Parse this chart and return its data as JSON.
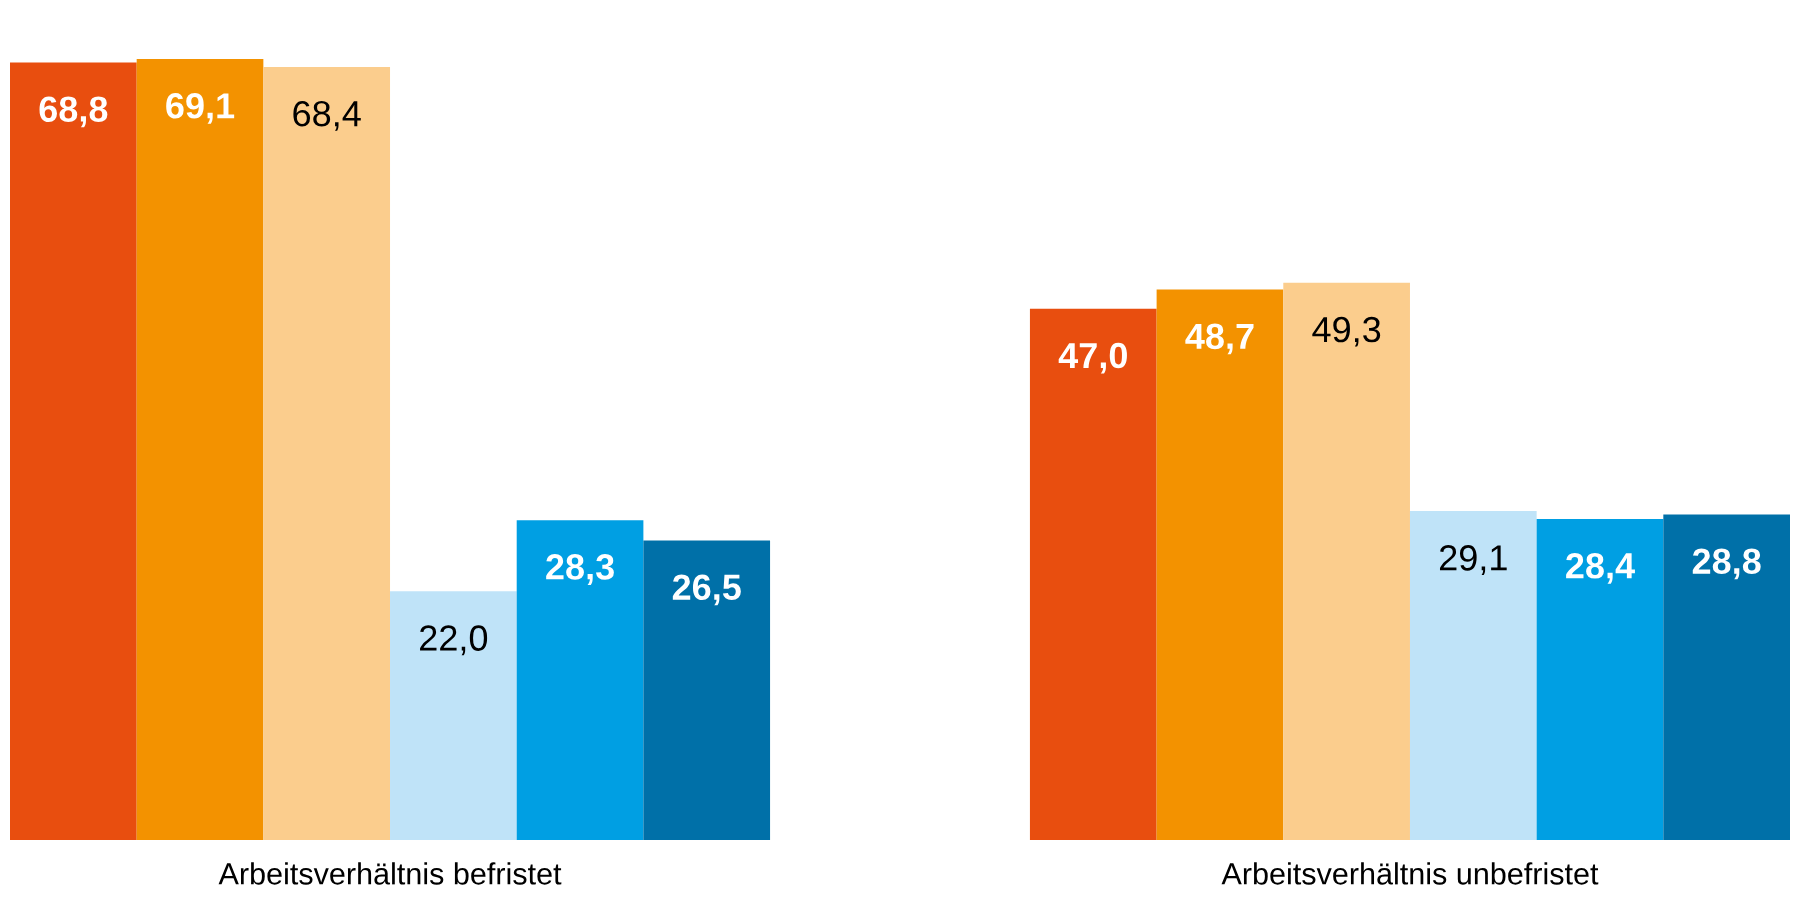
{
  "chart_data": {
    "type": "bar",
    "categories": [
      "Arbeitsverhältnis befristet",
      "Arbeitsverhältnis unbefristet"
    ],
    "grid": false,
    "tick_labels": "x",
    "series": [
      {
        "color": "#e84e0f",
        "values": [
          68.8,
          47.0
        ],
        "value_labels": [
          "68,8",
          "47,0"
        ]
      },
      {
        "color": "#f39200",
        "values": [
          69.1,
          48.7
        ],
        "value_labels": [
          "69,1",
          "48,7"
        ]
      },
      {
        "color": "#fbcd8d",
        "values": [
          68.4,
          49.3
        ],
        "value_labels": [
          "68,4",
          "49,3"
        ]
      },
      {
        "color": "#bfe3f8",
        "values": [
          22.0,
          29.1
        ],
        "value_labels": [
          "22,0",
          "29,1"
        ]
      },
      {
        "color": "#009fe3",
        "values": [
          28.3,
          28.4
        ],
        "value_labels": [
          "28,3",
          "28,4"
        ]
      },
      {
        "color": "#0070a8",
        "values": [
          26.5,
          28.8
        ],
        "value_labels": [
          "26,5",
          "28,8"
        ]
      }
    ]
  }
}
